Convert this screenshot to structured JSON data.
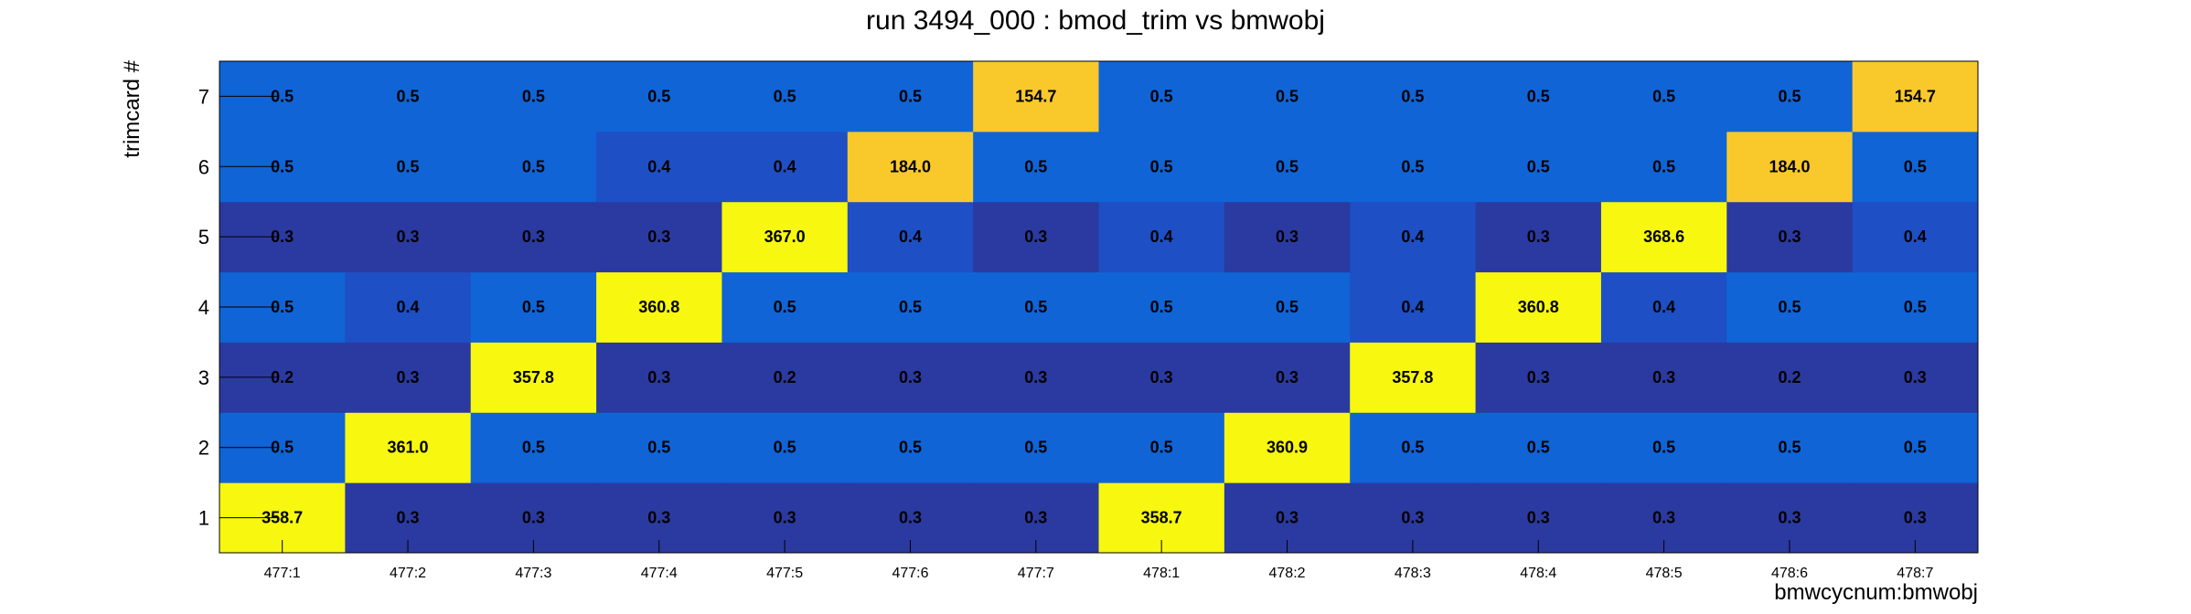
{
  "chart_data": {
    "type": "heatmap",
    "title": "run 3494_000 : bmod_trim vs bmwobj",
    "xlabel": "bmwcycnum:bmwobj",
    "ylabel": "trimcard #",
    "x_categories": [
      "477:1",
      "477:2",
      "477:3",
      "477:4",
      "477:5",
      "477:6",
      "477:7",
      "478:1",
      "478:2",
      "478:3",
      "478:4",
      "478:5",
      "478:6",
      "478:7"
    ],
    "y_categories": [
      "1",
      "2",
      "3",
      "4",
      "5",
      "6",
      "7"
    ],
    "values": [
      [
        "358.7",
        "0.3",
        "0.3",
        "0.3",
        "0.3",
        "0.3",
        "0.3",
        "358.7",
        "0.3",
        "0.3",
        "0.3",
        "0.3",
        "0.3",
        "0.3"
      ],
      [
        "0.5",
        "361.0",
        "0.5",
        "0.5",
        "0.5",
        "0.5",
        "0.5",
        "0.5",
        "360.9",
        "0.5",
        "0.5",
        "0.5",
        "0.5",
        "0.5"
      ],
      [
        "0.2",
        "0.3",
        "357.8",
        "0.3",
        "0.2",
        "0.3",
        "0.3",
        "0.3",
        "0.3",
        "357.8",
        "0.3",
        "0.3",
        "0.2",
        "0.3"
      ],
      [
        "0.5",
        "0.4",
        "0.5",
        "360.8",
        "0.5",
        "0.5",
        "0.5",
        "0.5",
        "0.5",
        "0.4",
        "360.8",
        "0.4",
        "0.5",
        "0.5"
      ],
      [
        "0.3",
        "0.3",
        "0.3",
        "0.3",
        "367.0",
        "0.4",
        "0.3",
        "0.4",
        "0.3",
        "0.4",
        "0.3",
        "368.6",
        "0.3",
        "0.4"
      ],
      [
        "0.5",
        "0.5",
        "0.5",
        "0.4",
        "0.4",
        "184.0",
        "0.5",
        "0.5",
        "0.5",
        "0.5",
        "0.5",
        "0.5",
        "184.0",
        "0.5"
      ],
      [
        "0.5",
        "0.5",
        "0.5",
        "0.5",
        "0.5",
        "0.5",
        "154.7",
        "0.5",
        "0.5",
        "0.5",
        "0.5",
        "0.5",
        "0.5",
        "154.7"
      ]
    ],
    "color_scale": {
      "low": "#2b3aa0",
      "mid_low": "#1e4fc4",
      "mid": "#1064d6",
      "high": "#f7f70f",
      "high_mid": "#f9c92c"
    },
    "grid": false,
    "legend": "none"
  }
}
